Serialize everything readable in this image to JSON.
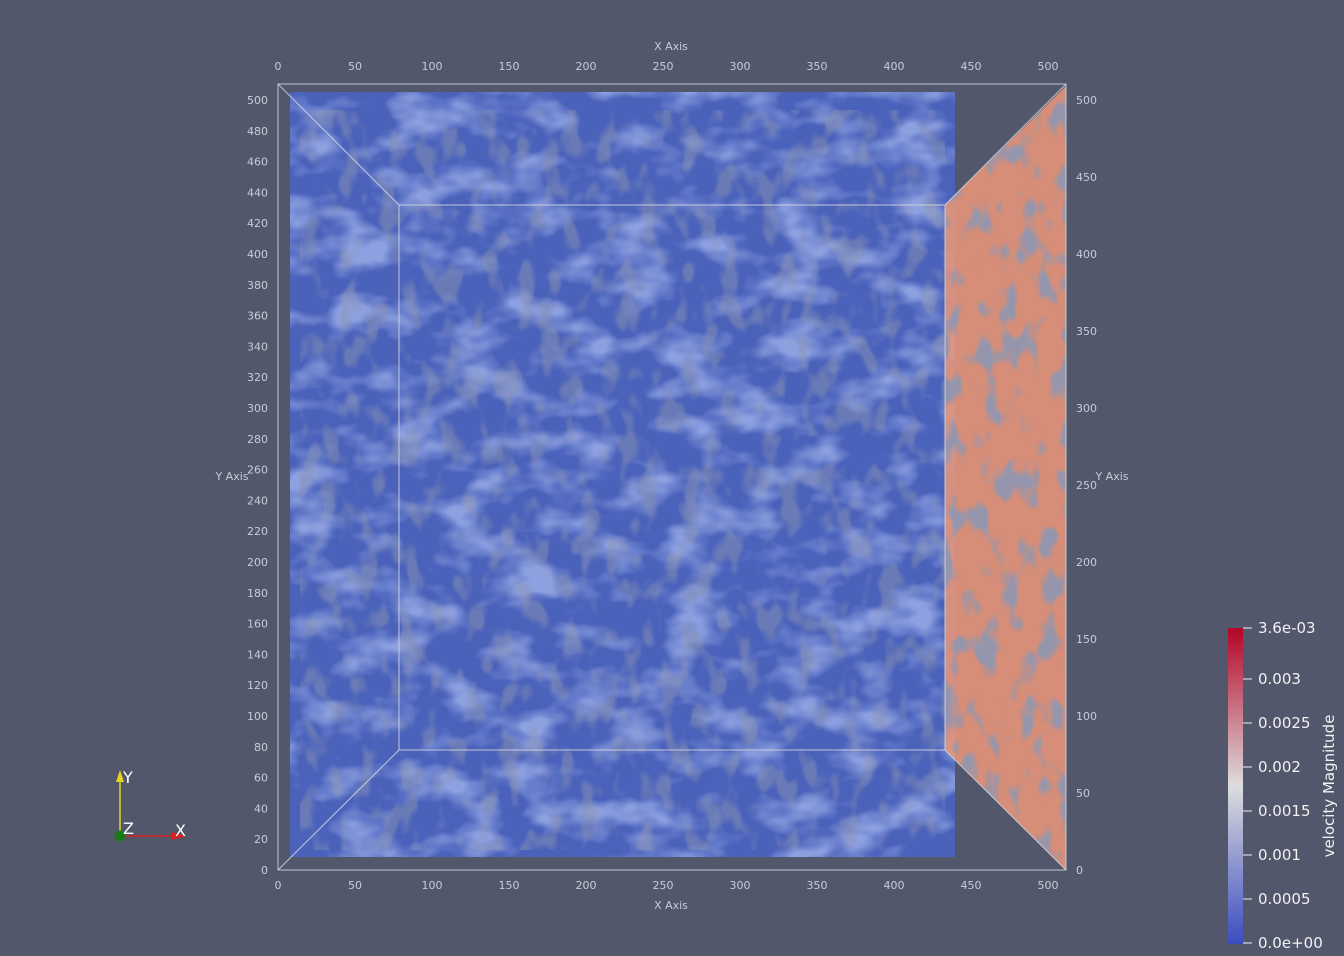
{
  "view": {
    "background": "#52576b",
    "volume_color": "#4a66d6",
    "side_face_color": "#e8967a"
  },
  "axes": {
    "x_axis_title_top": "X Axis",
    "x_axis_title_bottom": "X Axis",
    "y_axis_title_left": "Y Axis",
    "y_axis_title_right": "Y Axis",
    "x_ticks_top": [
      "0",
      "50",
      "100",
      "150",
      "200",
      "250",
      "300",
      "350",
      "400",
      "450",
      "500"
    ],
    "x_ticks_bottom": [
      "0",
      "50",
      "100",
      "150",
      "200",
      "250",
      "300",
      "350",
      "400",
      "450",
      "500"
    ],
    "y_ticks_left": [
      "0",
      "20",
      "40",
      "60",
      "80",
      "100",
      "120",
      "140",
      "160",
      "180",
      "200",
      "220",
      "240",
      "260",
      "280",
      "300",
      "320",
      "340",
      "360",
      "380",
      "400",
      "420",
      "440",
      "460",
      "480",
      "500"
    ],
    "y_ticks_right": [
      "0",
      "50",
      "100",
      "150",
      "200",
      "250",
      "300",
      "350",
      "400",
      "450",
      "500"
    ]
  },
  "colorbar": {
    "title": "velocity Magnitude",
    "labels": [
      "3.6e-03",
      "0.003",
      "0.0025",
      "0.002",
      "0.0015",
      "0.001",
      "0.0005",
      "0.0e+00"
    ],
    "colors": {
      "max": "#b40426",
      "mid": "#dddddd",
      "min": "#3b4cc0"
    }
  },
  "orientation": {
    "x_label": "X",
    "y_label": "Y",
    "z_label": "Z",
    "x_color": "#d62020",
    "y_color": "#e6d31a",
    "z_color": "#1a7a1a"
  }
}
